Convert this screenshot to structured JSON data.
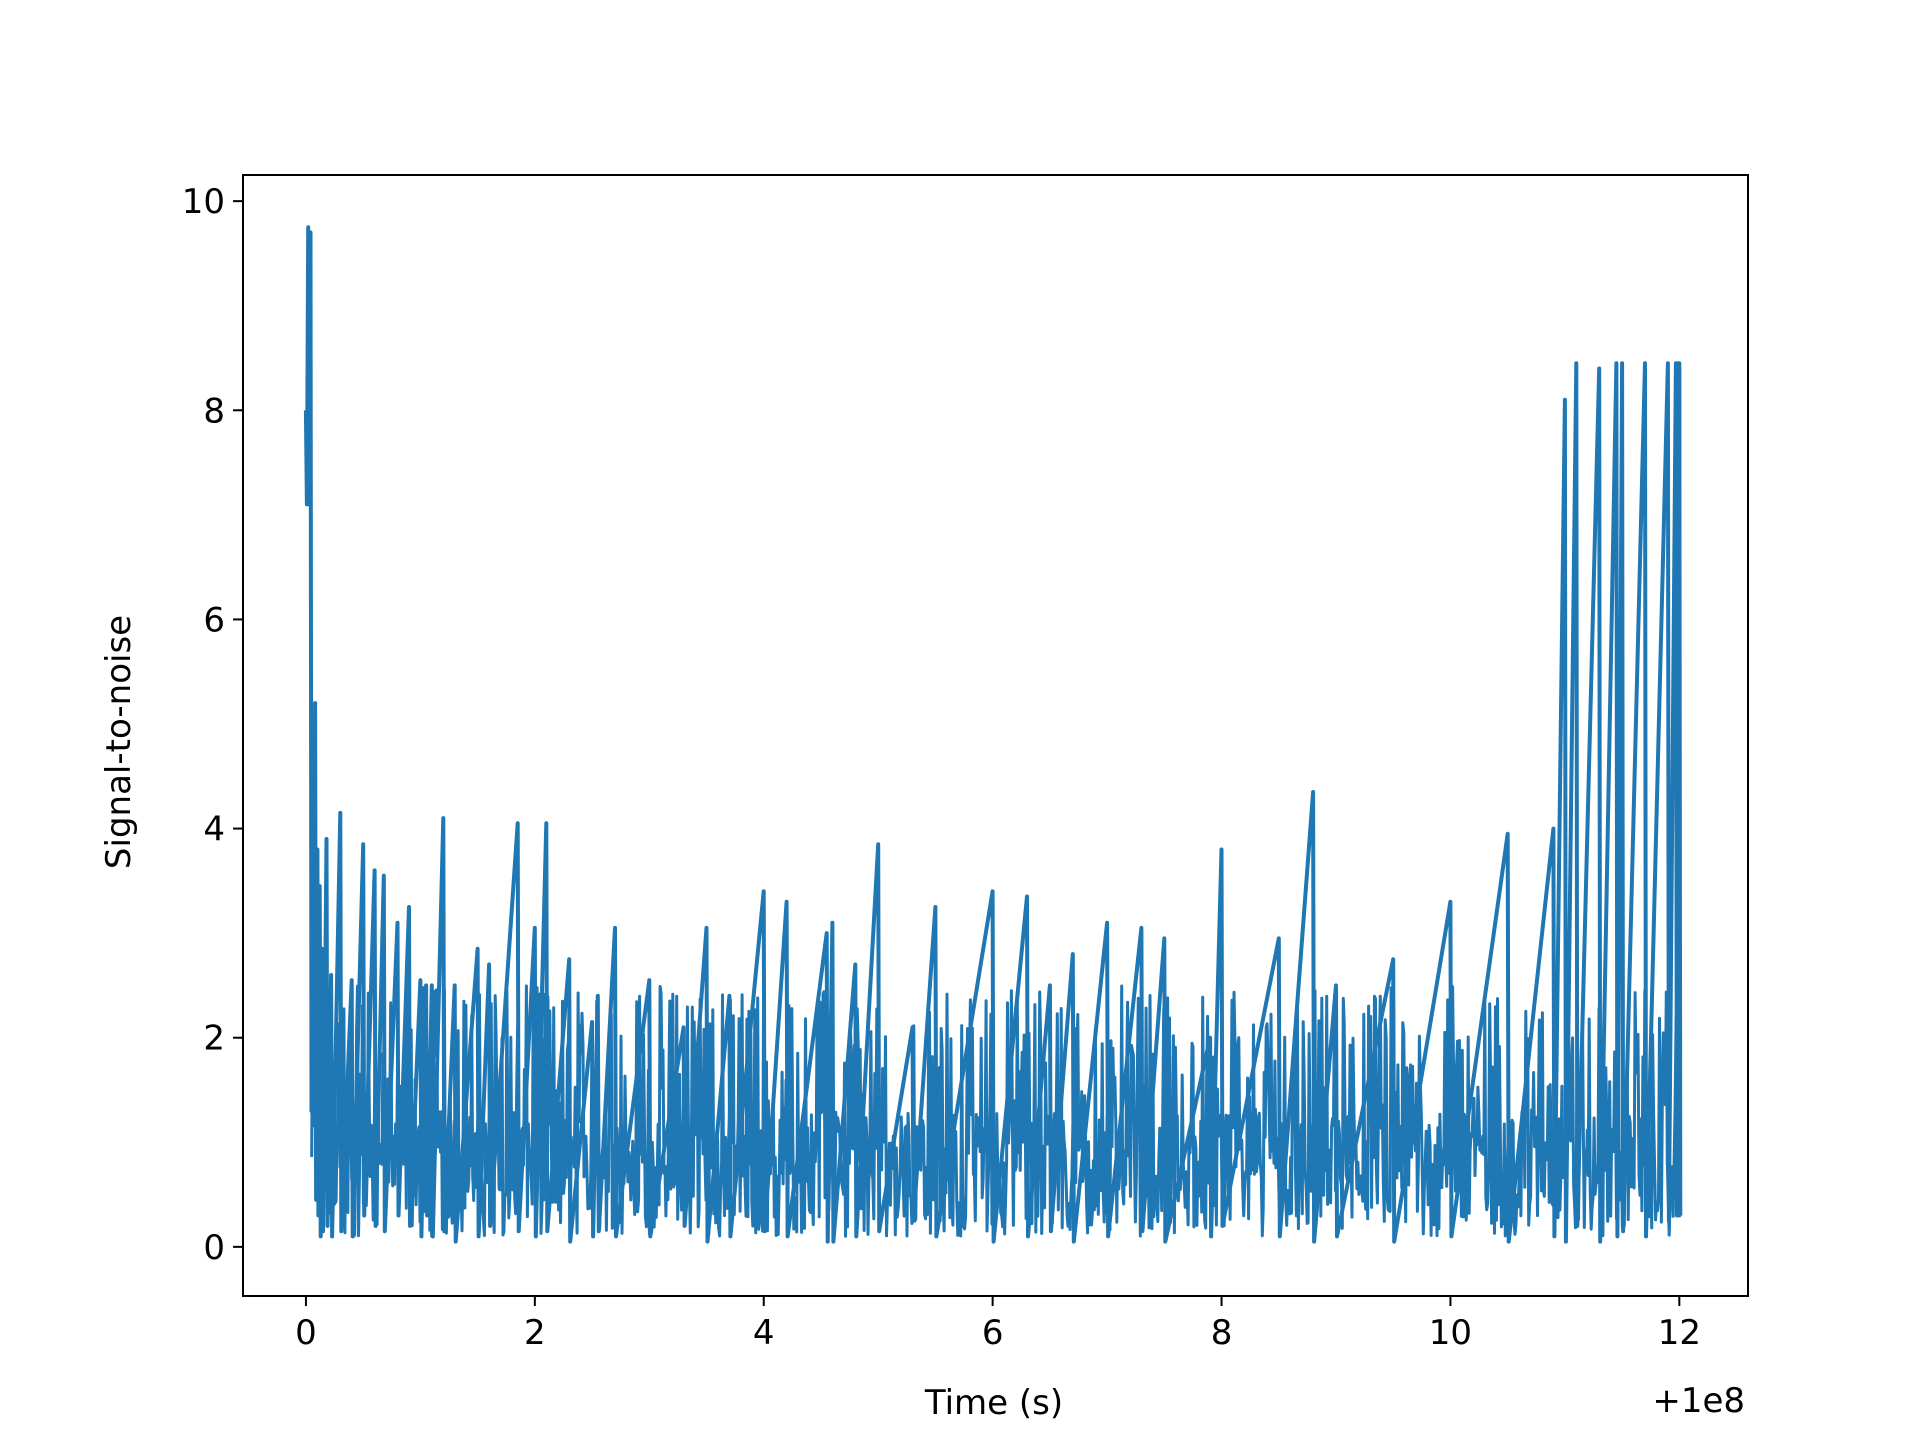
{
  "chart_data": {
    "type": "line",
    "title": "",
    "xlabel": "Time (s)",
    "ylabel": "Signal-to-noise",
    "x_offset_label": "+1e8",
    "xlim": [
      -0.55,
      12.6
    ],
    "ylim": [
      -0.47,
      10.25
    ],
    "xticks": [
      0,
      2,
      4,
      6,
      8,
      10,
      12
    ],
    "xtick_labels": [
      "0",
      "2",
      "4",
      "6",
      "8",
      "10",
      "12"
    ],
    "yticks": [
      0,
      2,
      4,
      6,
      8,
      10
    ],
    "ytick_labels": [
      "0",
      "2",
      "4",
      "6",
      "8",
      "10"
    ],
    "grid": false,
    "legend": "none",
    "series": [
      {
        "color": "#1f77b4",
        "noise_band": {
          "x_range": [
            0.05,
            11.98
          ],
          "typical_range": [
            0.1,
            2.5
          ],
          "approx_mean": 1.0
        },
        "x": [
          0.0,
          0.02,
          0.03,
          0.04,
          0.06,
          0.08,
          0.1,
          0.12,
          0.14,
          0.18,
          0.22,
          0.3,
          0.4,
          0.5,
          0.6,
          0.68,
          0.8,
          0.9,
          1.0,
          1.05,
          1.1,
          1.2,
          1.3,
          1.5,
          1.6,
          1.85,
          2.0,
          2.1,
          2.3,
          2.5,
          2.55,
          2.7,
          3.0,
          3.3,
          3.5,
          3.7,
          4.0,
          4.2,
          4.55,
          4.6,
          4.8,
          5.0,
          5.3,
          5.5,
          6.0,
          6.3,
          6.5,
          6.7,
          7.0,
          7.3,
          7.5,
          7.9,
          8.0,
          8.5,
          8.8,
          9.0,
          9.5,
          10.0,
          10.5,
          10.9,
          11.0,
          11.1,
          11.3,
          11.45,
          11.5,
          11.7,
          11.9,
          11.97,
          11.99,
          12.0
        ],
        "peaks": [
          8.0,
          9.75,
          7.1,
          9.7,
          4.0,
          5.2,
          3.8,
          3.45,
          2.85,
          3.9,
          2.6,
          4.15,
          2.55,
          3.85,
          3.6,
          3.55,
          3.1,
          3.25,
          2.55,
          2.5,
          2.5,
          4.1,
          2.5,
          2.85,
          2.7,
          4.05,
          3.05,
          4.05,
          2.75,
          2.15,
          2.4,
          3.05,
          2.55,
          2.1,
          3.05,
          2.4,
          3.4,
          3.3,
          3.0,
          3.1,
          2.7,
          3.85,
          2.1,
          3.25,
          3.4,
          3.35,
          2.5,
          2.8,
          3.1,
          3.05,
          2.95,
          2.0,
          3.8,
          2.95,
          4.35,
          2.5,
          2.75,
          3.3,
          3.95,
          4.0,
          8.1,
          8.45,
          8.4,
          8.45,
          8.45,
          8.45,
          8.45,
          8.45,
          8.45,
          8.45
        ],
        "troughs": [
          7.1,
          7.1,
          7.1,
          1.3,
          1.35,
          0.45,
          0.3,
          0.1,
          0.15,
          0.2,
          0.1,
          0.15,
          0.1,
          0.3,
          0.2,
          0.15,
          0.3,
          0.2,
          0.1,
          0.3,
          0.1,
          0.15,
          0.05,
          0.1,
          0.2,
          0.15,
          0.1,
          0.15,
          0.05,
          0.1,
          0.15,
          0.1,
          0.1,
          0.2,
          0.05,
          0.1,
          0.15,
          0.1,
          0.05,
          0.05,
          0.1,
          0.15,
          0.25,
          0.1,
          0.05,
          0.1,
          0.15,
          0.05,
          0.1,
          0.15,
          0.05,
          0.1,
          0.2,
          0.1,
          0.05,
          0.1,
          0.05,
          0.1,
          0.05,
          0.1,
          0.05,
          0.2,
          0.05,
          0.1,
          0.15,
          0.1,
          0.25,
          0.3,
          0.3,
          0.3
        ]
      }
    ]
  }
}
